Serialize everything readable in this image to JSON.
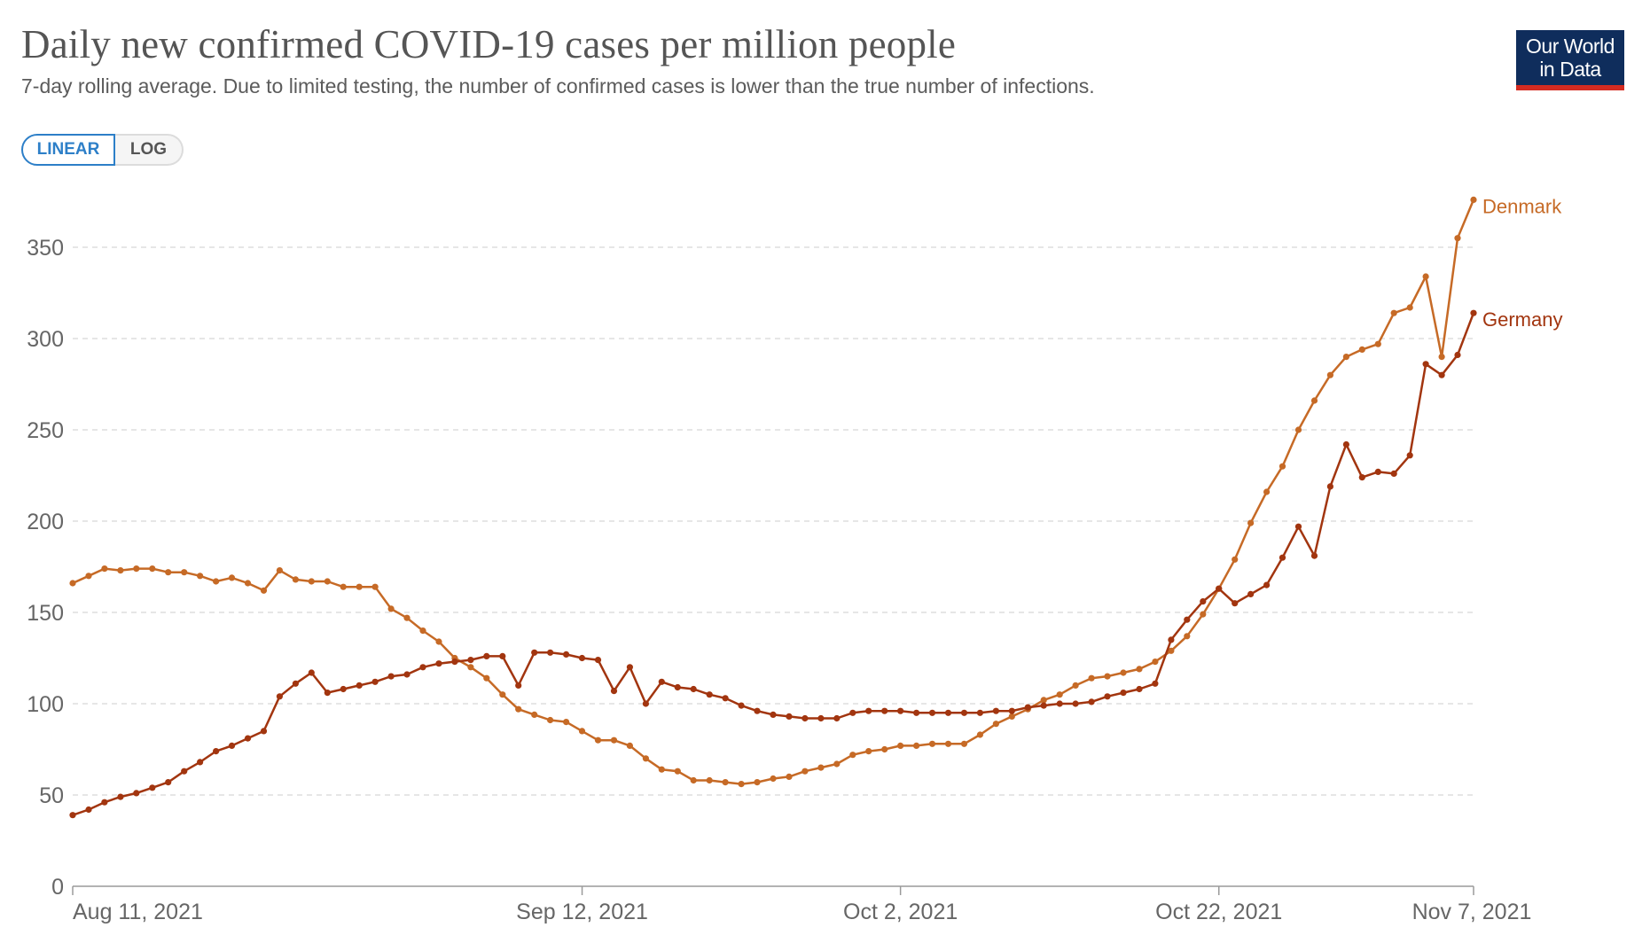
{
  "header": {
    "title": "Daily new confirmed COVID-19 cases per million people",
    "subtitle": "7-day rolling average. Due to limited testing, the number of confirmed cases is lower than the true number of infections."
  },
  "logo": {
    "line1": "Our World",
    "line2": "in Data"
  },
  "scale_toggle": {
    "linear_label": "LINEAR",
    "log_label": "LOG",
    "selected": "LINEAR"
  },
  "chart_data": {
    "type": "line",
    "title": "Daily new confirmed COVID-19 cases per million people",
    "start_date": "2021-08-11",
    "end_date": "2021-11-07",
    "x_ticks": [
      {
        "day": 0,
        "label": "Aug 11, 2021"
      },
      {
        "day": 32,
        "label": "Sep 12, 2021"
      },
      {
        "day": 52,
        "label": "Oct 2, 2021"
      },
      {
        "day": 72,
        "label": "Oct 22, 2021"
      },
      {
        "day": 88,
        "label": "Nov 7, 2021"
      }
    ],
    "y_ticks": [
      0,
      50,
      100,
      150,
      200,
      250,
      300,
      350
    ],
    "ylim": [
      0,
      375
    ],
    "grid": "horizontal-dashed",
    "series": [
      {
        "name": "Denmark",
        "color": "#c66a26",
        "values": [
          166,
          170,
          174,
          173,
          174,
          174,
          172,
          172,
          170,
          167,
          169,
          166,
          162,
          173,
          168,
          167,
          167,
          164,
          164,
          164,
          152,
          147,
          140,
          134,
          125,
          120,
          114,
          105,
          97,
          94,
          91,
          90,
          85,
          80,
          80,
          77,
          70,
          64,
          63,
          58,
          58,
          57,
          56,
          57,
          59,
          60,
          63,
          65,
          67,
          72,
          74,
          75,
          77,
          77,
          78,
          78,
          78,
          83,
          89,
          93,
          97,
          102,
          105,
          110,
          114,
          115,
          117,
          119,
          123,
          129,
          137,
          149,
          163,
          179,
          199,
          216,
          230,
          250,
          266,
          280,
          290,
          294,
          297,
          314,
          317,
          334,
          290,
          355,
          376
        ]
      },
      {
        "name": "Germany",
        "color": "#a2350f",
        "values": [
          39,
          42,
          46,
          49,
          51,
          54,
          57,
          63,
          68,
          74,
          77,
          81,
          85,
          104,
          111,
          117,
          106,
          108,
          110,
          112,
          115,
          116,
          120,
          122,
          123,
          124,
          126,
          126,
          110,
          128,
          128,
          127,
          125,
          124,
          107,
          120,
          100,
          112,
          109,
          108,
          105,
          103,
          99,
          96,
          94,
          93,
          92,
          92,
          92,
          95,
          96,
          96,
          96,
          95,
          95,
          95,
          95,
          95,
          96,
          96,
          98,
          99,
          100,
          100,
          101,
          104,
          106,
          108,
          111,
          135,
          146,
          156,
          163,
          155,
          160,
          165,
          180,
          197,
          181,
          219,
          242,
          224,
          227,
          226,
          236,
          286,
          280,
          291,
          314
        ]
      }
    ]
  }
}
